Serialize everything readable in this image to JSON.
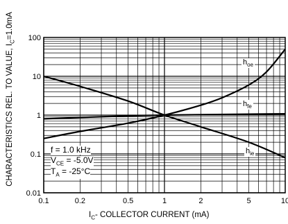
{
  "chart_data": {
    "type": "line",
    "title": "",
    "xlabel_main": "I",
    "xlabel_sub": "C",
    "xlabel_rest": "- COLLECTOR CURRENT (mA)",
    "ylabel_main": "CHARACTERISTICS REL. TO VALUE, I",
    "ylabel_sub": "C",
    "ylabel_rest": "=1.0mA",
    "x_scale": "log",
    "y_scale": "log",
    "xlim": [
      0.1,
      10
    ],
    "ylim": [
      0.01,
      100
    ],
    "x_ticks": [
      "0.1",
      "0.2",
      "0.5",
      "1",
      "2",
      "5",
      "10"
    ],
    "y_ticks": [
      "100",
      "10",
      "1",
      "0.1",
      "0.01"
    ],
    "grid": true,
    "conditions": [
      {
        "main": "f = 1.0 kHz",
        "sub": "",
        "rest": ""
      },
      {
        "main": "V",
        "sub": "CE",
        "rest": " = -5.0V"
      },
      {
        "main": "T",
        "sub": "A",
        "rest": " = -25°C"
      }
    ],
    "series": [
      {
        "name_main": "h",
        "name_sub": "oe",
        "x": [
          0.1,
          0.2,
          0.5,
          1,
          2,
          3,
          5,
          7,
          10
        ],
        "y": [
          0.25,
          0.38,
          0.62,
          1.0,
          1.8,
          2.8,
          6.0,
          13,
          50
        ]
      },
      {
        "name_main": "h",
        "name_sub": "fe",
        "x": [
          0.1,
          0.2,
          0.5,
          1,
          2,
          5,
          10
        ],
        "y": [
          0.8,
          0.87,
          0.95,
          1.0,
          1.03,
          1.06,
          1.08
        ]
      },
      {
        "name_main": "h",
        "name_sub": "ie",
        "x": [
          0.1,
          0.2,
          0.5,
          1,
          2,
          5,
          10
        ],
        "y": [
          10,
          5.5,
          2.3,
          1.0,
          0.5,
          0.2,
          0.08
        ]
      }
    ]
  }
}
